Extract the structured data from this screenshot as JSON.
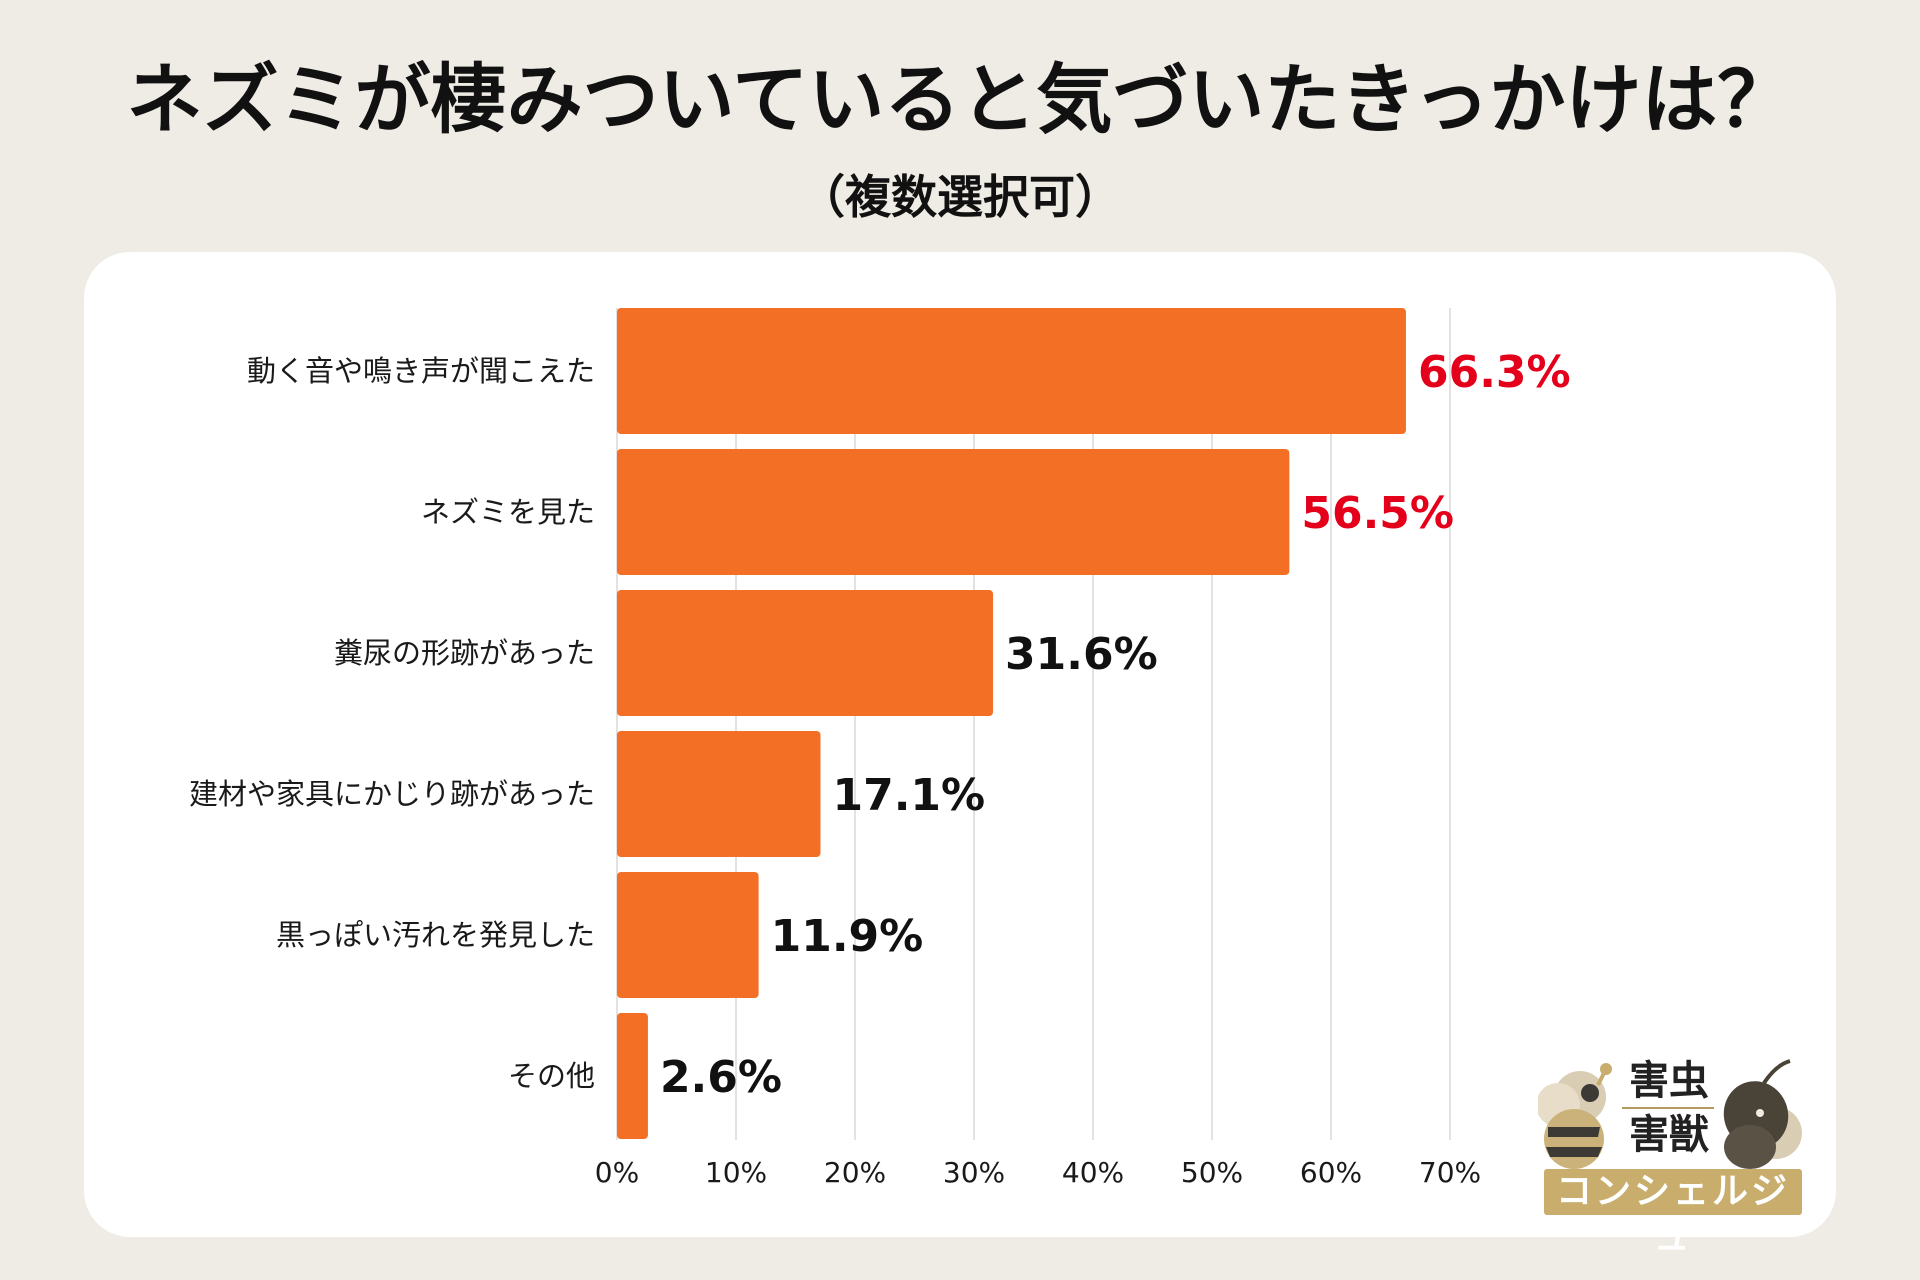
{
  "title": "ネズミが棲みついていると気づいたきっかけは？",
  "subtitle": "（複数選択可）",
  "colors": {
    "bar": "#f36f25",
    "highlight_label": "#e4001b",
    "normal_label": "#111111",
    "grid": "#d9d9d9"
  },
  "chart_data": {
    "type": "bar",
    "orientation": "horizontal",
    "categories": [
      "動く音や鳴き声が聞こえた",
      "ネズミを見た",
      "糞尿の形跡があった",
      "建材や家具にかじり跡があった",
      "黒っぽい汚れを発見した",
      "その他"
    ],
    "values": [
      66.3,
      56.5,
      31.6,
      17.1,
      11.9,
      2.6
    ],
    "value_labels": [
      "66.3%",
      "56.5%",
      "31.6%",
      "17.1%",
      "11.9%",
      "2.6%"
    ],
    "highlighted": [
      true,
      true,
      false,
      false,
      false,
      false
    ],
    "xlim": [
      0,
      70
    ],
    "xticks": [
      0,
      10,
      20,
      30,
      40,
      50,
      60,
      70
    ],
    "xtick_labels": [
      "0%",
      "10%",
      "20%",
      "30%",
      "40%",
      "50%",
      "60%",
      "70%"
    ],
    "grid": true
  },
  "logo": {
    "line1": "害虫",
    "line2": "害獣",
    "badge": "コンシェルジュ",
    "icons": [
      "bee-icon",
      "mouse-icon"
    ]
  }
}
